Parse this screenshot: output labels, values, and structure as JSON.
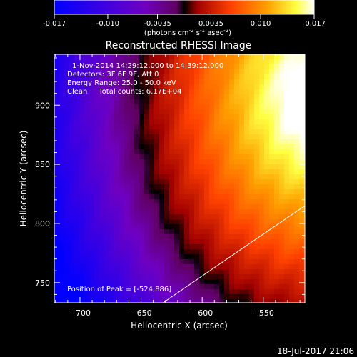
{
  "chart_data": {
    "type": "heatmap",
    "title": "Reconstructed RHESSI Image",
    "colorbar": {
      "ticks": [
        "-0.017",
        "-0.010",
        "-0.0035",
        "0.0035",
        "0.010",
        "0.017"
      ],
      "tick_values": [
        -0.017,
        -0.01,
        -0.0035,
        0.0035,
        0.01,
        0.017
      ],
      "range": [
        -0.017,
        0.017
      ],
      "units_text": "(photons cm",
      "units_sup1": "-2",
      "units_mid": " s",
      "units_sup2": "-1",
      "units_tail": " asec",
      "units_sup3": "-2",
      "units_close": ")"
    },
    "xlabel": "Heliocentric X (arcsec)",
    "ylabel": "Heliocentric Y (arcsec)",
    "xlim": [
      -721,
      -516
    ],
    "ylim": [
      733,
      943
    ],
    "xticks": [
      -700,
      -650,
      -600,
      -550
    ],
    "yticks": [
      750,
      800,
      850,
      900
    ],
    "annotations": [
      "1-Nov-2014 14:29:12.000 to 14:39:12.000",
      "Detectors: 3F 6F 9F, Att 0",
      "Energy Range: 25.0 - 50.0 keV",
      "Clean     Total counts: 6.17E+04"
    ],
    "peak_label": "Position of Peak = [-524,886]",
    "peak": {
      "x": -524,
      "y": 886
    },
    "limb_line": {
      "x1": -632,
      "y1": 733,
      "x2": -516,
      "y2": 815
    },
    "grid": false,
    "colormap": [
      "#0000ff",
      "#4000e0",
      "#7000c0",
      "#800080",
      "#000000",
      "#c00000",
      "#ff4000",
      "#ffa000",
      "#ffff40",
      "#ffffff"
    ]
  },
  "footer": {
    "date": "18-Jul-2017 21:06"
  }
}
